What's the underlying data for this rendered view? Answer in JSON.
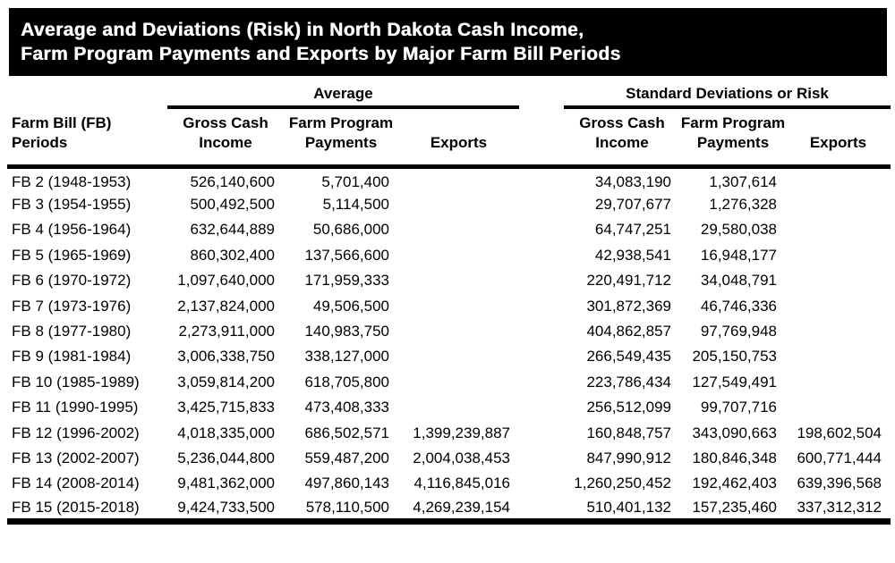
{
  "colors": {
    "background": "#ffffff",
    "banner_bg": "#000000",
    "banner_text": "#ffffff",
    "text": "#000000",
    "rule": "#000000"
  },
  "banner": {
    "line1": "Average and Deviations (Risk) in North Dakota Cash Income,",
    "line2": "Farm Program Payments and Exports by Major Farm Bill Periods"
  },
  "table": {
    "row_header": {
      "line1": "Farm Bill (FB)",
      "line2": "Periods"
    },
    "groups": {
      "average": {
        "label": "Average",
        "columns": [
          {
            "line1": "Gross Cash",
            "line2": "Income"
          },
          {
            "line1": "Farm Program",
            "line2": "Payments"
          },
          {
            "line1": "",
            "line2": "Exports"
          }
        ]
      },
      "risk": {
        "label": "Standard Deviations or Risk",
        "columns": [
          {
            "line1": "Gross Cash",
            "line2": "Income"
          },
          {
            "line1": "Farm Program",
            "line2": "Payments"
          },
          {
            "line1": "",
            "line2": "Exports"
          }
        ]
      }
    },
    "rows": [
      {
        "period": "FB 2 (1948-1953)",
        "avg": [
          "526,140,600",
          "5,701,400",
          ""
        ],
        "sd": [
          "34,083,190",
          "1,307,614",
          ""
        ]
      },
      {
        "period": "FB 3 (1954-1955)",
        "avg": [
          "500,492,500",
          "5,114,500",
          ""
        ],
        "sd": [
          "29,707,677",
          "1,276,328",
          ""
        ]
      },
      {
        "period": "FB 4 (1956-1964)",
        "avg": [
          "632,644,889",
          "50,686,000",
          ""
        ],
        "sd": [
          "64,747,251",
          "29,580,038",
          ""
        ]
      },
      {
        "period": "FB 5 (1965-1969)",
        "avg": [
          "860,302,400",
          "137,566,600",
          ""
        ],
        "sd": [
          "42,938,541",
          "16,948,177",
          ""
        ]
      },
      {
        "period": "FB 6 (1970-1972)",
        "avg": [
          "1,097,640,000",
          "171,959,333",
          ""
        ],
        "sd": [
          "220,491,712",
          "34,048,791",
          ""
        ]
      },
      {
        "period": "FB 7 (1973-1976)",
        "avg": [
          "2,137,824,000",
          "49,506,500",
          ""
        ],
        "sd": [
          "301,872,369",
          "46,746,336",
          ""
        ]
      },
      {
        "period": "FB 8 (1977-1980)",
        "avg": [
          "2,273,911,000",
          "140,983,750",
          ""
        ],
        "sd": [
          "404,862,857",
          "97,769,948",
          ""
        ]
      },
      {
        "period": "FB 9 (1981-1984)",
        "avg": [
          "3,006,338,750",
          "338,127,000",
          ""
        ],
        "sd": [
          "266,549,435",
          "205,150,753",
          ""
        ]
      },
      {
        "period": "FB 10 (1985-1989)",
        "avg": [
          "3,059,814,200",
          "618,705,800",
          ""
        ],
        "sd": [
          "223,786,434",
          "127,549,491",
          ""
        ]
      },
      {
        "period": "FB 11 (1990-1995)",
        "avg": [
          "3,425,715,833",
          "473,408,333",
          ""
        ],
        "sd": [
          "256,512,099",
          "99,707,716",
          ""
        ]
      },
      {
        "period": "FB 12 (1996-2002)",
        "avg": [
          "4,018,335,000",
          "686,502,571",
          "1,399,239,887"
        ],
        "sd": [
          "160,848,757",
          "343,090,663",
          "198,602,504"
        ]
      },
      {
        "period": "FB 13 (2002-2007)",
        "avg": [
          "5,236,044,800",
          "559,487,200",
          "2,004,038,453"
        ],
        "sd": [
          "847,990,912",
          "180,846,348",
          "600,771,444"
        ]
      },
      {
        "period": "FB 14 (2008-2014)",
        "avg": [
          "9,481,362,000",
          "497,860,143",
          "4,116,845,016"
        ],
        "sd": [
          "1,260,250,452",
          "192,462,403",
          "639,396,568"
        ]
      },
      {
        "period": "FB 15 (2015-2018)",
        "avg": [
          "9,424,733,500",
          "578,110,500",
          "4,269,239,154"
        ],
        "sd": [
          "510,401,132",
          "157,235,460",
          "337,312,312"
        ]
      }
    ]
  }
}
